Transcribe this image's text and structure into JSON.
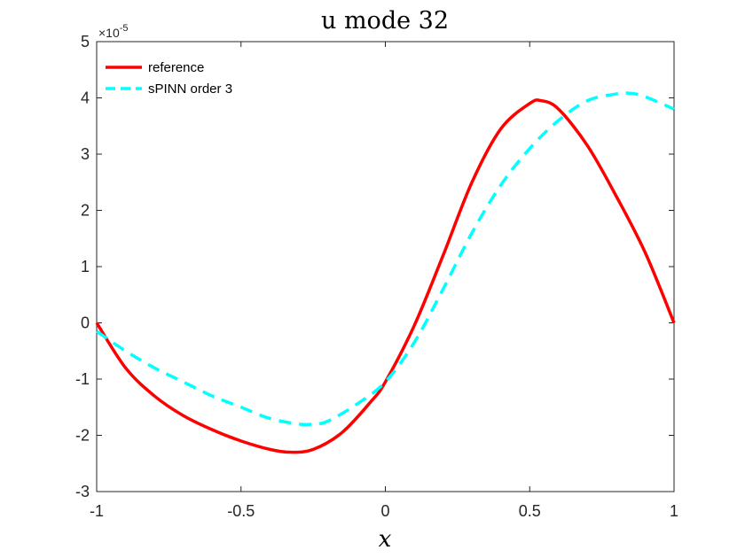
{
  "chart_data": {
    "type": "line",
    "title": "u mode 32",
    "xlabel": "x",
    "ylabel": "",
    "xlim": [
      -1,
      1
    ],
    "ylim": [
      -3,
      5
    ],
    "y_exponent": "×10",
    "y_exponent_power": "-5",
    "x_ticks": [
      "-1",
      "-0.5",
      "0",
      "0.5",
      "1"
    ],
    "y_ticks": [
      "-3",
      "-2",
      "-1",
      "0",
      "1",
      "2",
      "3",
      "4",
      "5"
    ],
    "legend_position": "top-left",
    "series": [
      {
        "name": "reference",
        "color": "#ff0000",
        "style": "solid",
        "x": [
          -1,
          -0.9,
          -0.8,
          -0.7,
          -0.6,
          -0.5,
          -0.4,
          -0.33,
          -0.25,
          -0.15,
          -0.05,
          0,
          0.1,
          0.2,
          0.3,
          0.4,
          0.5,
          0.54,
          0.6,
          0.7,
          0.8,
          0.9,
          1
        ],
        "y": [
          0,
          -0.8,
          -1.3,
          -1.65,
          -1.9,
          -2.1,
          -2.25,
          -2.3,
          -2.25,
          -1.95,
          -1.4,
          -1.05,
          -0.05,
          1.2,
          2.5,
          3.45,
          3.9,
          3.95,
          3.8,
          3.15,
          2.25,
          1.25,
          0
        ]
      },
      {
        "name": "sPINN order 3",
        "color": "#00ffff",
        "style": "dashed",
        "x": [
          -1,
          -0.9,
          -0.8,
          -0.7,
          -0.6,
          -0.5,
          -0.4,
          -0.3,
          -0.25,
          -0.2,
          -0.1,
          0,
          0.1,
          0.2,
          0.3,
          0.4,
          0.5,
          0.6,
          0.7,
          0.8,
          0.85,
          0.9,
          1
        ],
        "y": [
          -0.15,
          -0.5,
          -0.8,
          -1.05,
          -1.3,
          -1.5,
          -1.7,
          -1.8,
          -1.8,
          -1.75,
          -1.45,
          -1.05,
          -0.35,
          0.6,
          1.6,
          2.45,
          3.1,
          3.6,
          3.95,
          4.07,
          4.08,
          4.02,
          3.8
        ]
      }
    ]
  }
}
